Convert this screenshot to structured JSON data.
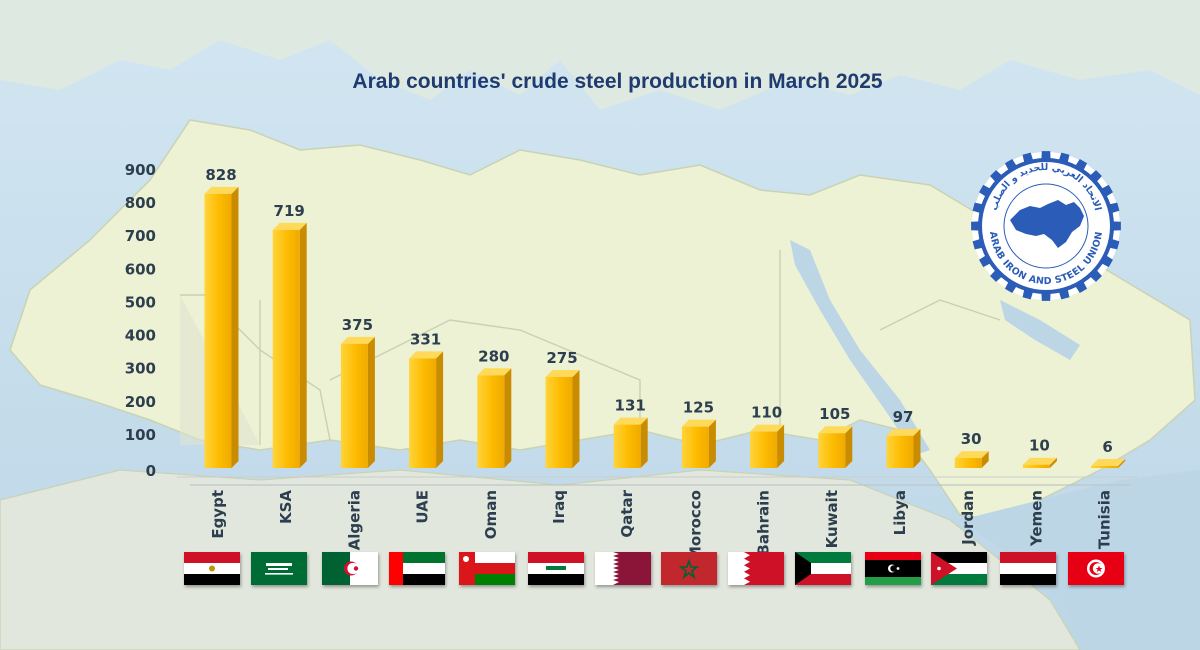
{
  "chart_data": {
    "type": "bar",
    "title": "Arab countries' crude steel production in March 2025",
    "xlabel": "",
    "ylabel": "",
    "ylim": [
      0,
      900
    ],
    "yticks": [
      0,
      100,
      200,
      300,
      400,
      500,
      600,
      700,
      800,
      900
    ],
    "categories": [
      "Egypt",
      "KSA",
      "Algeria",
      "UAE",
      "Oman",
      "Iraq",
      "Qatar",
      "Morocco",
      "Bahrain",
      "Kuwait",
      "Libya",
      "Jordan",
      "Yemen",
      "Tunisia"
    ],
    "values": [
      828,
      719,
      375,
      331,
      280,
      275,
      131,
      125,
      110,
      105,
      97,
      30,
      10,
      6
    ],
    "bar_color": "#fdbb00",
    "grid": false,
    "legend": "none",
    "data_labels": true
  },
  "flags": [
    "egypt-flag-icon",
    "saudi-arabia-flag-icon",
    "algeria-flag-icon",
    "uae-flag-icon",
    "oman-flag-icon",
    "iraq-flag-icon",
    "qatar-flag-icon",
    "morocco-flag-icon",
    "bahrain-flag-icon",
    "kuwait-flag-icon",
    "libya-flag-icon",
    "jordan-flag-icon",
    "yemen-flag-icon",
    "tunisia-flag-icon"
  ],
  "logo": {
    "icon": "arab-iron-and-steel-union-logo",
    "text": "ARAB IRON AND STEEL UNION",
    "arabic_text": "الاتحاد العربي للحديد و الصلب"
  }
}
